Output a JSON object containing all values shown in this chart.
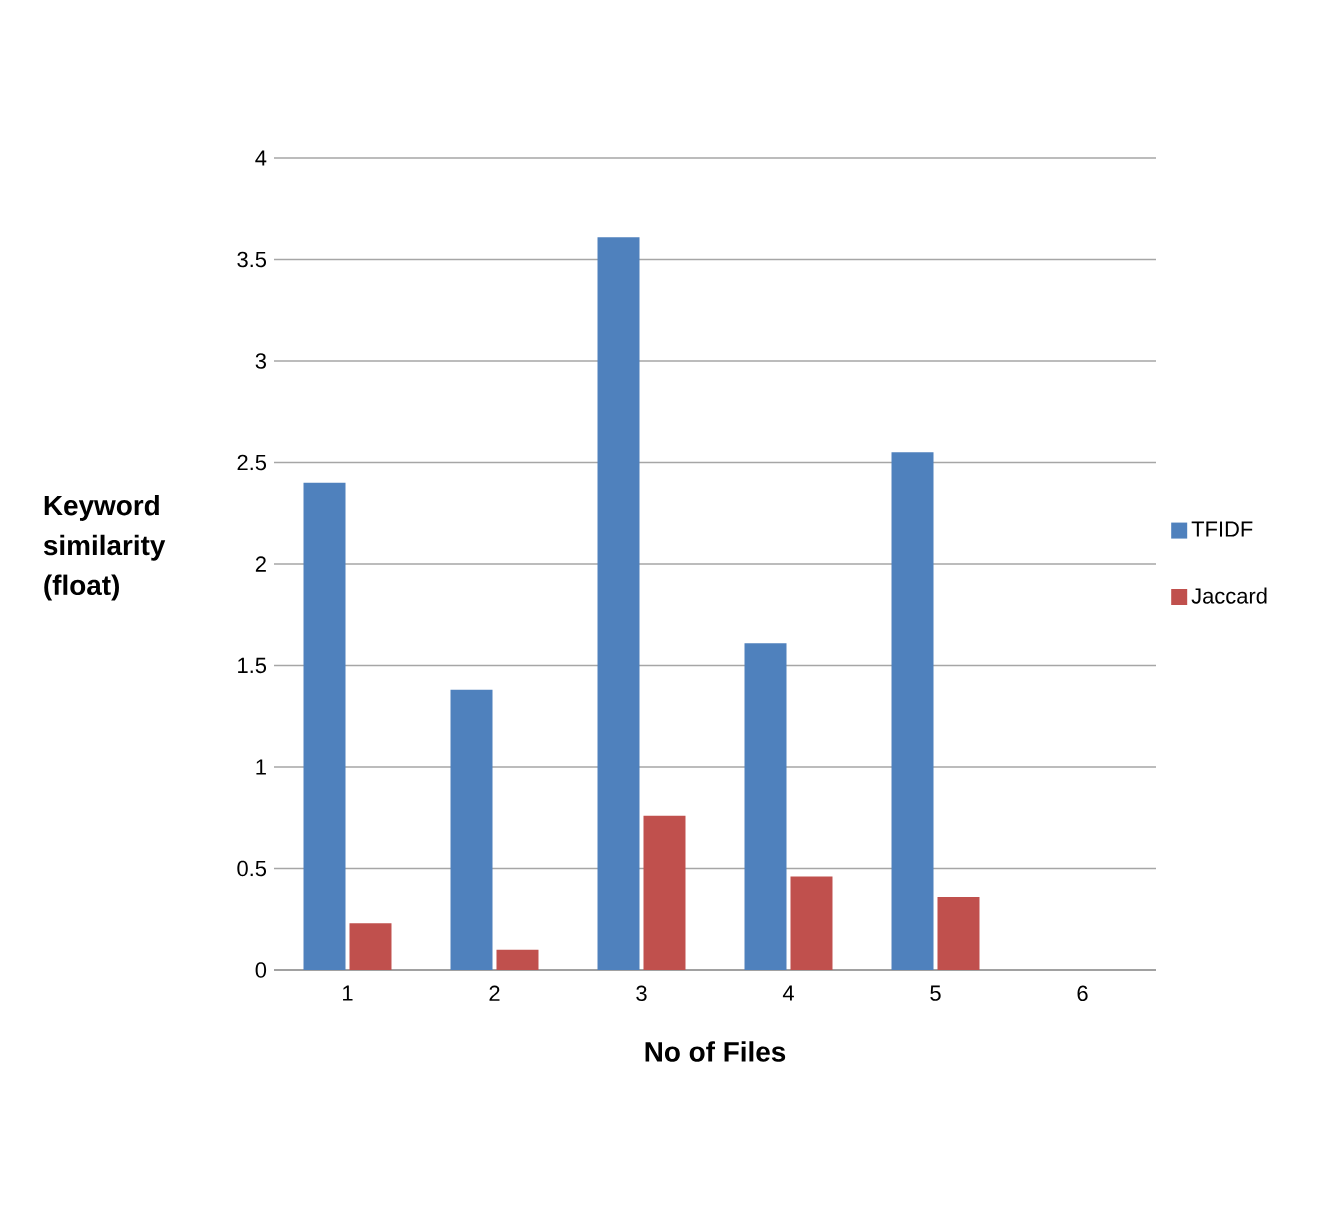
{
  "chart_data": {
    "type": "bar",
    "xlabel": "No of Files",
    "ylabel": "Keyword similarity (float)",
    "categories": [
      "1",
      "2",
      "3",
      "4",
      "5",
      "6"
    ],
    "series": [
      {
        "name": "TFIDF",
        "color": "#4f81bd",
        "values": [
          2.4,
          1.38,
          3.61,
          1.61,
          2.55,
          null
        ]
      },
      {
        "name": "Jaccard",
        "color": "#c0504d",
        "values": [
          0.23,
          0.1,
          0.76,
          0.46,
          0.36,
          null
        ]
      }
    ],
    "ylim": [
      0,
      4
    ],
    "yticks": [
      0,
      0.5,
      1,
      1.5,
      2,
      2.5,
      3,
      3.5,
      4
    ],
    "grid": "y",
    "legend": "right"
  }
}
